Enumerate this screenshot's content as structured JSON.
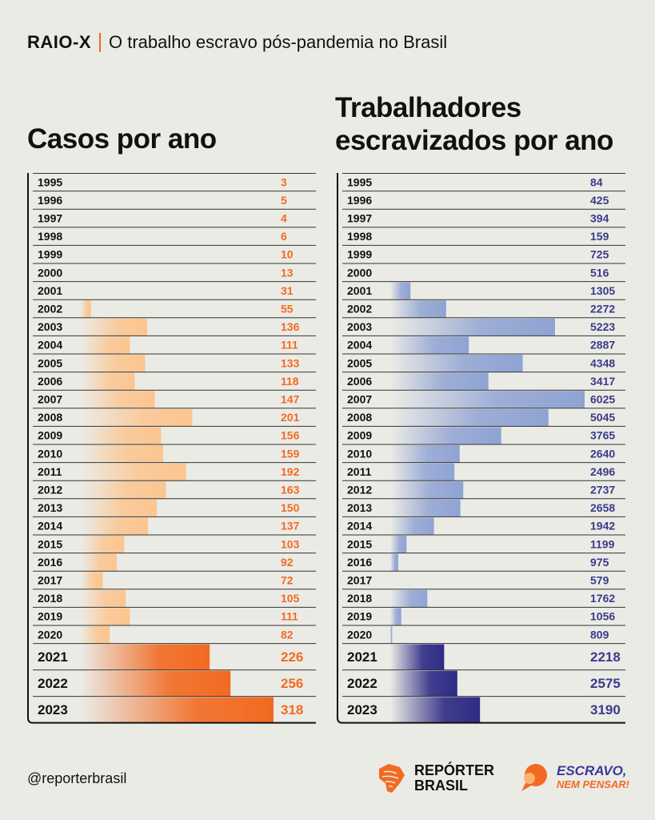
{
  "header": {
    "tag": "RAIO-X",
    "subtitle": "O trabalho escravo pós-pandemia no Brasil"
  },
  "titles": {
    "left": "Casos por ano",
    "right": "Trabalhadores escravizados por ano"
  },
  "footer": {
    "handle": "@reporterbrasil",
    "logo1_line1": "REPÓRTER",
    "logo1_line2": "BRASIL",
    "logo2_line1": "ESCRAVO,",
    "logo2_line2": "NEM PENSAR!"
  },
  "colors": {
    "orange": "#f26a21",
    "orange_light": "#fcc58f",
    "blue": "#2e2b85",
    "blue_light": "#8fa3d3",
    "value_blue": "#3b3a8a"
  },
  "chart_data": [
    {
      "type": "bar",
      "orientation": "horizontal",
      "title": "Casos por ano",
      "categories": [
        "1995",
        "1996",
        "1997",
        "1998",
        "1999",
        "2000",
        "2001",
        "2002",
        "2003",
        "2004",
        "2005",
        "2006",
        "2007",
        "2008",
        "2009",
        "2010",
        "2011",
        "2012",
        "2013",
        "2014",
        "2015",
        "2016",
        "2017",
        "2018",
        "2019",
        "2020",
        "2021",
        "2022",
        "2023"
      ],
      "values": [
        3,
        5,
        4,
        6,
        10,
        13,
        31,
        55,
        136,
        111,
        133,
        118,
        147,
        201,
        156,
        159,
        192,
        163,
        150,
        137,
        103,
        92,
        72,
        105,
        111,
        82,
        226,
        256,
        318
      ],
      "highlight": [
        "2021",
        "2022",
        "2023"
      ],
      "xlim": [
        0,
        318
      ]
    },
    {
      "type": "bar",
      "orientation": "horizontal",
      "title": "Trabalhadores escravizados por ano",
      "categories": [
        "1995",
        "1996",
        "1997",
        "1998",
        "1999",
        "2000",
        "2001",
        "2002",
        "2003",
        "2004",
        "2005",
        "2006",
        "2007",
        "2008",
        "2009",
        "2010",
        "2011",
        "2012",
        "2013",
        "2014",
        "2015",
        "2016",
        "2017",
        "2018",
        "2019",
        "2020",
        "2021",
        "2022",
        "2023"
      ],
      "values": [
        84,
        425,
        394,
        159,
        725,
        516,
        1305,
        2272,
        5223,
        2887,
        4348,
        3417,
        6025,
        5045,
        3765,
        2640,
        2496,
        2737,
        2658,
        1942,
        1199,
        975,
        579,
        1762,
        1056,
        809,
        2218,
        2575,
        3190
      ],
      "highlight": [
        "2021",
        "2022",
        "2023"
      ],
      "xlim": [
        0,
        6025
      ]
    }
  ]
}
